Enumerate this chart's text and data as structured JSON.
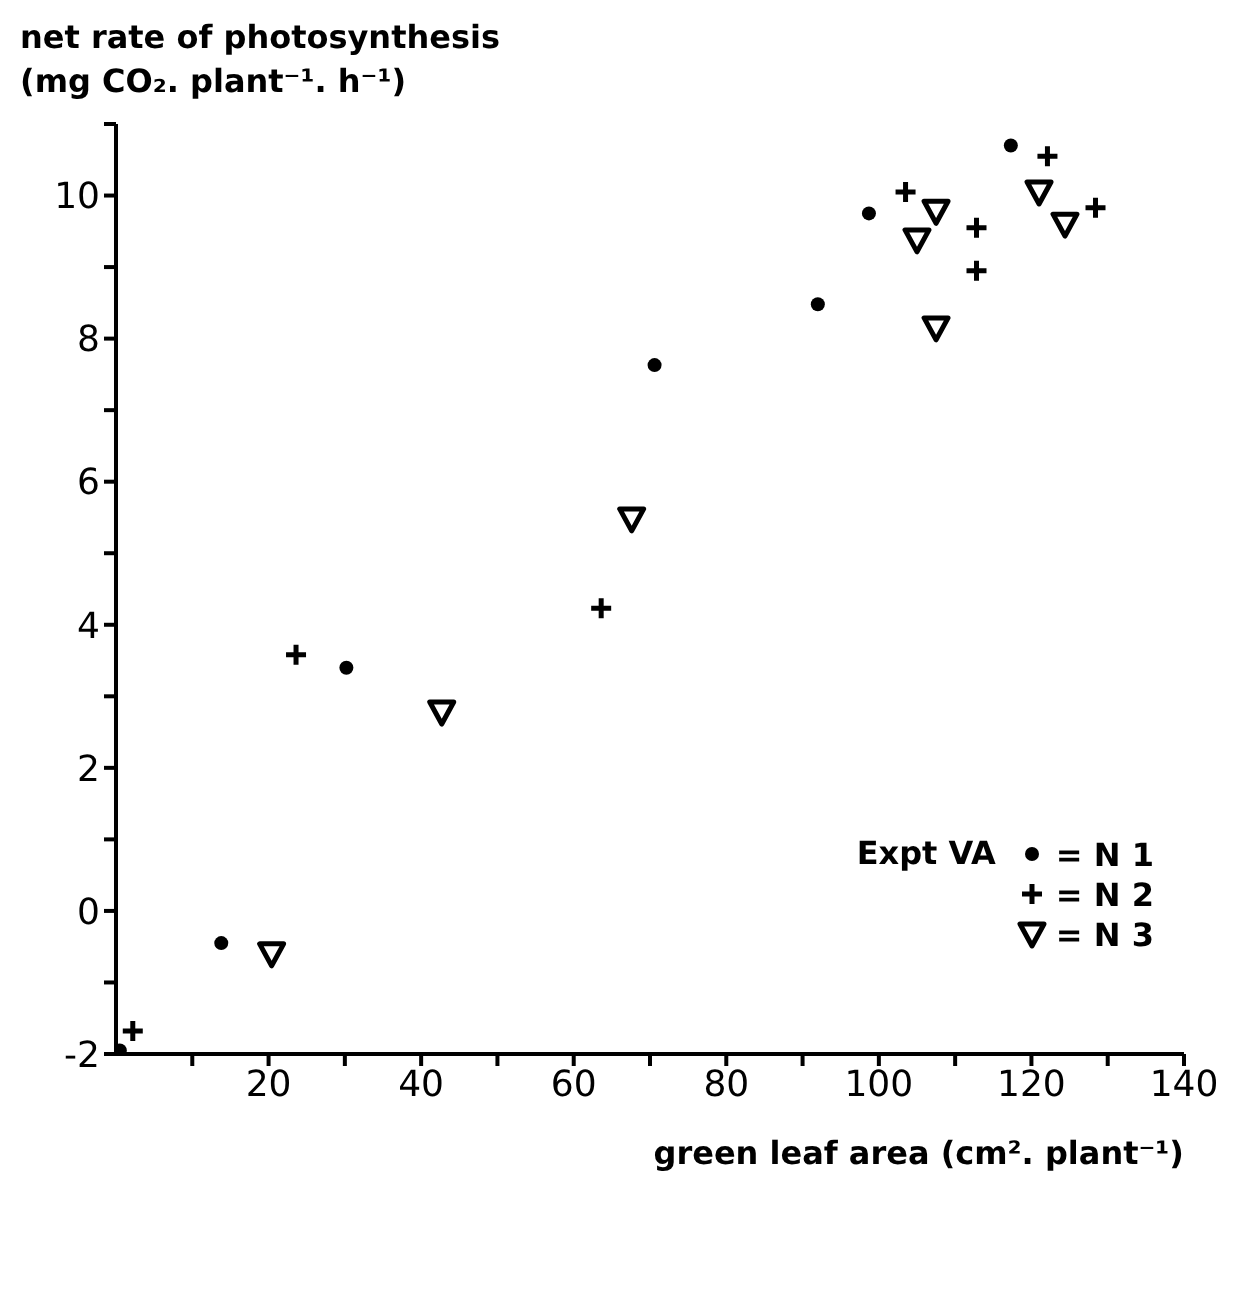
{
  "chart_data": {
    "type": "scatter",
    "ylabel": "net rate of photosynthesis\n(mg CO₂. plant⁻¹. h⁻¹)",
    "xlabel": "green leaf area (cm². plant⁻¹)",
    "legend_title": "Expt VA",
    "legend": "bottom right",
    "xlim": [
      0,
      140
    ],
    "xticks": [
      {
        "value": 10,
        "label": null
      },
      20,
      {
        "value": 30,
        "label": null
      },
      40,
      {
        "value": 50,
        "label": null
      },
      60,
      {
        "value": 70,
        "label": null
      },
      80,
      {
        "value": 90,
        "label": null
      },
      100,
      {
        "value": 110,
        "label": null
      },
      120,
      {
        "value": 130,
        "label": null
      },
      140
    ],
    "ylim": [
      -2,
      11
    ],
    "yticks": [
      -2,
      {
        "value": -1,
        "label": null
      },
      0,
      {
        "value": 1,
        "label": null
      },
      2,
      {
        "value": 3,
        "label": null
      },
      4,
      {
        "value": 5,
        "label": null
      },
      6,
      {
        "value": 7,
        "label": null
      },
      8,
      {
        "value": 9,
        "label": null
      },
      10,
      {
        "value": 11,
        "label": null
      }
    ],
    "series": [
      {
        "name": "= N 1",
        "color": "#000000",
        "marker": "circle",
        "x": [
          0.5,
          13.8,
          30.2,
          70.6,
          92,
          98.7,
          117.3
        ],
        "values": [
          -1.95,
          -0.45,
          3.4,
          7.63,
          8.48,
          9.75,
          10.7
        ]
      },
      {
        "name": "= N 2",
        "color": "#000000",
        "marker": "cross",
        "x": [
          2.2,
          23.6,
          63.6,
          103.5,
          112.8,
          112.8,
          122.1,
          128.4
        ],
        "values": [
          -1.68,
          3.58,
          4.23,
          10.05,
          9.55,
          8.95,
          10.55,
          9.83
        ]
      },
      {
        "name": "= N 3",
        "color": "#000000",
        "marker": "triangle",
        "x": [
          20.4,
          42.7,
          67.6,
          105,
          107.5,
          107.5,
          121,
          124.4
        ],
        "values": [
          -0.6,
          2.78,
          5.48,
          9.38,
          9.78,
          8.15,
          10.05,
          9.6
        ]
      }
    ]
  }
}
